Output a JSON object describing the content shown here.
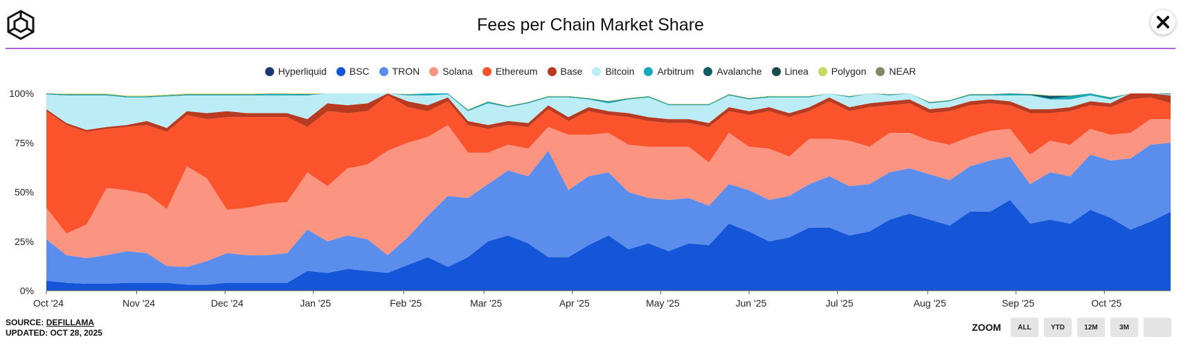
{
  "header": {
    "title": "Fees per Chain Market Share"
  },
  "footer": {
    "source_label": "SOURCE:",
    "source_name": "DEFILLAMA",
    "updated": "UPDATED: OCT 28, 2025"
  },
  "zoom": {
    "label": "ZOOM",
    "buttons": [
      "ALL",
      "YTD",
      "12M",
      "3M",
      ""
    ]
  },
  "chart_data": {
    "type": "area",
    "stacked": true,
    "title": "Fees per Chain Market Share",
    "xlabel": "",
    "ylabel": "",
    "ylim": [
      0,
      100
    ],
    "yticks": [
      "0%",
      "25%",
      "50%",
      "75%",
      "100%"
    ],
    "xticks": [
      "Oct '24",
      "Nov '24",
      "Dec '24",
      "Jan '25",
      "Feb '25",
      "Mar '25",
      "Apr '25",
      "May '25",
      "Jun '25",
      "Jul '25",
      "Aug '25",
      "Sep '25",
      "Oct '25"
    ],
    "x_range_weeks": [
      0,
      56
    ],
    "x_tick_weeks": [
      0,
      4.5,
      8.9,
      13.3,
      17.8,
      21.8,
      26.2,
      30.6,
      35,
      39.4,
      43.9,
      48.3,
      52.7
    ],
    "legend": [
      "Hyperliquid",
      "BSC",
      "TRON",
      "Solana",
      "Ethereum",
      "Base",
      "Bitcoin",
      "Arbitrum",
      "Avalanche",
      "Linea",
      "Polygon",
      "NEAR"
    ],
    "colors": {
      "Hyperliquid": "#1b3670",
      "BSC": "#1555d8",
      "TRON": "#5b8ded",
      "Solana": "#fb9480",
      "Ethereum": "#fb532c",
      "Base": "#b83a20",
      "Bitcoin": "#bcecf6",
      "Arbitrum": "#14a9b8",
      "Avalanche": "#0e5c6a",
      "Linea": "#1d4a4a",
      "Polygon": "#c2da60",
      "NEAR": "#7d8a66"
    },
    "series": [
      {
        "name": "Hyperliquid",
        "values": [
          0,
          0,
          0,
          0,
          0,
          0,
          0,
          0,
          0,
          0,
          0,
          0,
          0,
          0,
          0,
          0,
          0,
          0,
          0,
          0,
          0,
          0,
          0,
          0,
          0,
          0,
          0,
          0,
          0,
          0,
          0,
          0,
          0,
          0,
          0,
          0,
          0,
          0,
          0,
          0,
          0,
          0,
          0,
          0,
          0,
          0,
          0,
          0,
          0,
          0,
          0,
          0,
          0,
          0,
          0,
          0,
          0
        ]
      },
      {
        "name": "BSC",
        "values": [
          5,
          4,
          3.5,
          3.5,
          4,
          4,
          4,
          3,
          3,
          4,
          4,
          4,
          4,
          10,
          9,
          11,
          10,
          9,
          13,
          17,
          12,
          17,
          25,
          28,
          24,
          17,
          17,
          23,
          28,
          21,
          24,
          20,
          24,
          23,
          34,
          30,
          25,
          27,
          32,
          32,
          28,
          30,
          36,
          39,
          36,
          33,
          40,
          40,
          46,
          34,
          36,
          34,
          41,
          37,
          31,
          35,
          40
        ]
      },
      {
        "name": "TRON",
        "values": [
          21,
          14,
          13,
          14.5,
          16,
          15,
          8.5,
          9,
          12,
          15,
          14,
          14,
          15,
          21,
          16,
          17,
          16,
          9,
          14,
          21,
          36,
          30,
          29,
          33,
          34,
          54,
          34,
          35,
          32,
          29,
          23,
          26,
          23,
          20,
          20,
          21,
          21,
          21,
          22,
          26,
          25,
          24,
          24,
          23,
          23,
          23,
          23,
          26,
          22,
          20,
          24,
          24,
          28,
          29,
          36,
          39,
          35
        ]
      },
      {
        "name": "Solana",
        "values": [
          16,
          11,
          17,
          34,
          31,
          30,
          29,
          51,
          42,
          22,
          24,
          26,
          26,
          29,
          28,
          34,
          38,
          53,
          48,
          40,
          36,
          23,
          16,
          13,
          14,
          12,
          28,
          21,
          20,
          24,
          26,
          27,
          26,
          22,
          26,
          22,
          26,
          20,
          23,
          19,
          23,
          19,
          20,
          18,
          17,
          18,
          15,
          15,
          14,
          15,
          16,
          16,
          13,
          13,
          13,
          13,
          12
        ]
      },
      {
        "name": "Ethereum",
        "values": [
          49,
          55,
          47,
          30,
          32,
          35,
          39,
          26,
          30,
          47,
          46,
          44,
          43,
          23,
          38,
          28,
          27,
          28,
          18,
          13,
          12,
          14,
          12,
          10,
          11,
          9,
          7,
          12,
          9,
          14,
          13,
          12,
          12,
          18,
          11,
          16,
          19,
          20,
          14,
          19,
          15,
          20,
          14,
          15,
          14,
          17,
          16,
          14,
          12,
          21,
          14,
          17,
          12,
          14,
          17,
          11,
          8
        ]
      },
      {
        "name": "Base",
        "values": [
          1,
          1,
          1,
          1,
          1,
          2,
          2,
          2,
          3,
          3,
          2,
          2,
          2,
          4,
          4,
          4,
          4,
          3,
          3,
          3,
          2,
          2,
          2,
          2,
          2,
          2,
          2,
          2,
          2,
          2,
          2,
          2,
          2,
          2,
          2,
          2,
          2,
          2,
          2,
          2,
          2,
          2,
          2,
          2,
          2,
          2,
          2,
          2,
          2,
          2,
          2,
          2,
          2,
          2,
          3,
          3,
          4
        ]
      },
      {
        "name": "Bitcoin",
        "values": [
          7.5,
          14,
          17.5,
          16,
          14,
          12,
          16,
          8,
          9,
          8,
          9,
          9,
          9,
          12,
          6,
          6,
          6,
          3,
          3,
          5,
          1.5,
          5,
          11,
          7,
          10,
          4,
          10,
          4,
          4,
          7,
          10,
          7,
          7,
          9,
          6,
          6,
          5,
          8,
          5,
          6,
          5,
          6,
          3,
          3,
          3,
          3,
          3,
          2,
          3,
          7,
          5,
          4,
          3,
          2,
          1,
          2,
          0.5
        ]
      },
      {
        "name": "Arbitrum",
        "values": [
          0.3,
          0.3,
          0.3,
          0.3,
          0.3,
          0.3,
          0.3,
          0.3,
          0.3,
          0.3,
          0.3,
          0.6,
          0.6,
          0.4,
          0.3,
          0.3,
          0.3,
          0.3,
          0.3,
          1.2,
          0.5,
          0.5,
          0.6,
          0.3,
          0.3,
          0.3,
          0.3,
          0.3,
          0.8,
          0.3,
          0.3,
          0.3,
          0.3,
          0.3,
          0.3,
          0.3,
          0.3,
          0.3,
          0.3,
          0.3,
          0.3,
          0.3,
          0.3,
          0.3,
          0.3,
          0.3,
          0.3,
          0.3,
          0.8,
          0.3,
          0.3,
          1.5,
          2,
          0.6,
          1.5,
          0.5,
          0.3
        ]
      },
      {
        "name": "Avalanche",
        "values": [
          0.2,
          0.2,
          0.2,
          0.2,
          0.2,
          0.2,
          0.2,
          0.2,
          0.2,
          0.2,
          0.2,
          0.2,
          0.2,
          0.2,
          0.2,
          0.2,
          0.2,
          0.2,
          0.2,
          0.2,
          0.2,
          0.2,
          0.2,
          0.2,
          0.2,
          0.2,
          0.2,
          0.2,
          0.2,
          0.2,
          0.2,
          0.2,
          0.2,
          0.2,
          0.2,
          0.2,
          0.2,
          0.2,
          0.2,
          0.2,
          0.2,
          0.2,
          0.2,
          0.2,
          0.2,
          0.2,
          0.2,
          0.2,
          0.5,
          0.3,
          1.5,
          0.3,
          0.3,
          0.3,
          0.5,
          0.5,
          0.3
        ]
      },
      {
        "name": "Linea",
        "values": [
          0,
          0,
          0,
          0,
          0,
          0,
          0,
          0,
          0,
          0,
          0,
          0,
          0,
          0,
          0,
          0,
          0,
          0,
          0,
          0,
          0,
          0,
          0,
          0,
          0,
          0,
          0,
          0,
          0,
          0,
          0,
          0,
          0,
          0,
          0,
          0,
          0,
          0,
          0,
          0,
          0,
          0,
          0,
          0,
          0,
          0,
          0,
          0,
          0,
          0,
          0,
          0,
          0,
          0,
          0,
          0,
          0
        ]
      },
      {
        "name": "Polygon",
        "values": [
          0.5,
          0.4,
          0.4,
          0.4,
          0.4,
          0.4,
          0.4,
          0.4,
          0.4,
          0.4,
          0.4,
          0.4,
          0.4,
          0.4,
          0.4,
          0.4,
          0.2,
          0.2,
          0.2,
          0.2,
          0.2,
          0.2,
          0.2,
          0.2,
          0.2,
          0.2,
          0.2,
          0.2,
          0.2,
          0.2,
          0.2,
          0.2,
          0.2,
          0.2,
          0.2,
          0.2,
          0.2,
          0.2,
          0.2,
          0.2,
          0.2,
          0.2,
          0.2,
          0.2,
          0.2,
          0.2,
          0.2,
          0.2,
          0.2,
          0.2,
          0.2,
          0.2,
          0.2,
          0.2,
          0.2,
          0.2,
          0.2
        ]
      },
      {
        "name": "NEAR",
        "values": [
          0,
          0,
          0,
          0,
          0,
          0,
          0,
          0,
          0,
          0,
          0,
          0,
          0,
          0,
          0,
          0,
          0,
          0,
          0,
          0,
          0,
          0,
          0,
          0,
          0,
          0,
          0,
          0,
          0,
          0,
          0,
          0,
          0,
          0,
          0,
          0,
          0,
          0,
          0,
          0,
          0,
          0,
          0,
          0,
          0,
          0,
          0,
          0,
          0,
          0,
          0,
          0,
          0,
          0,
          0,
          0,
          0
        ]
      }
    ]
  }
}
